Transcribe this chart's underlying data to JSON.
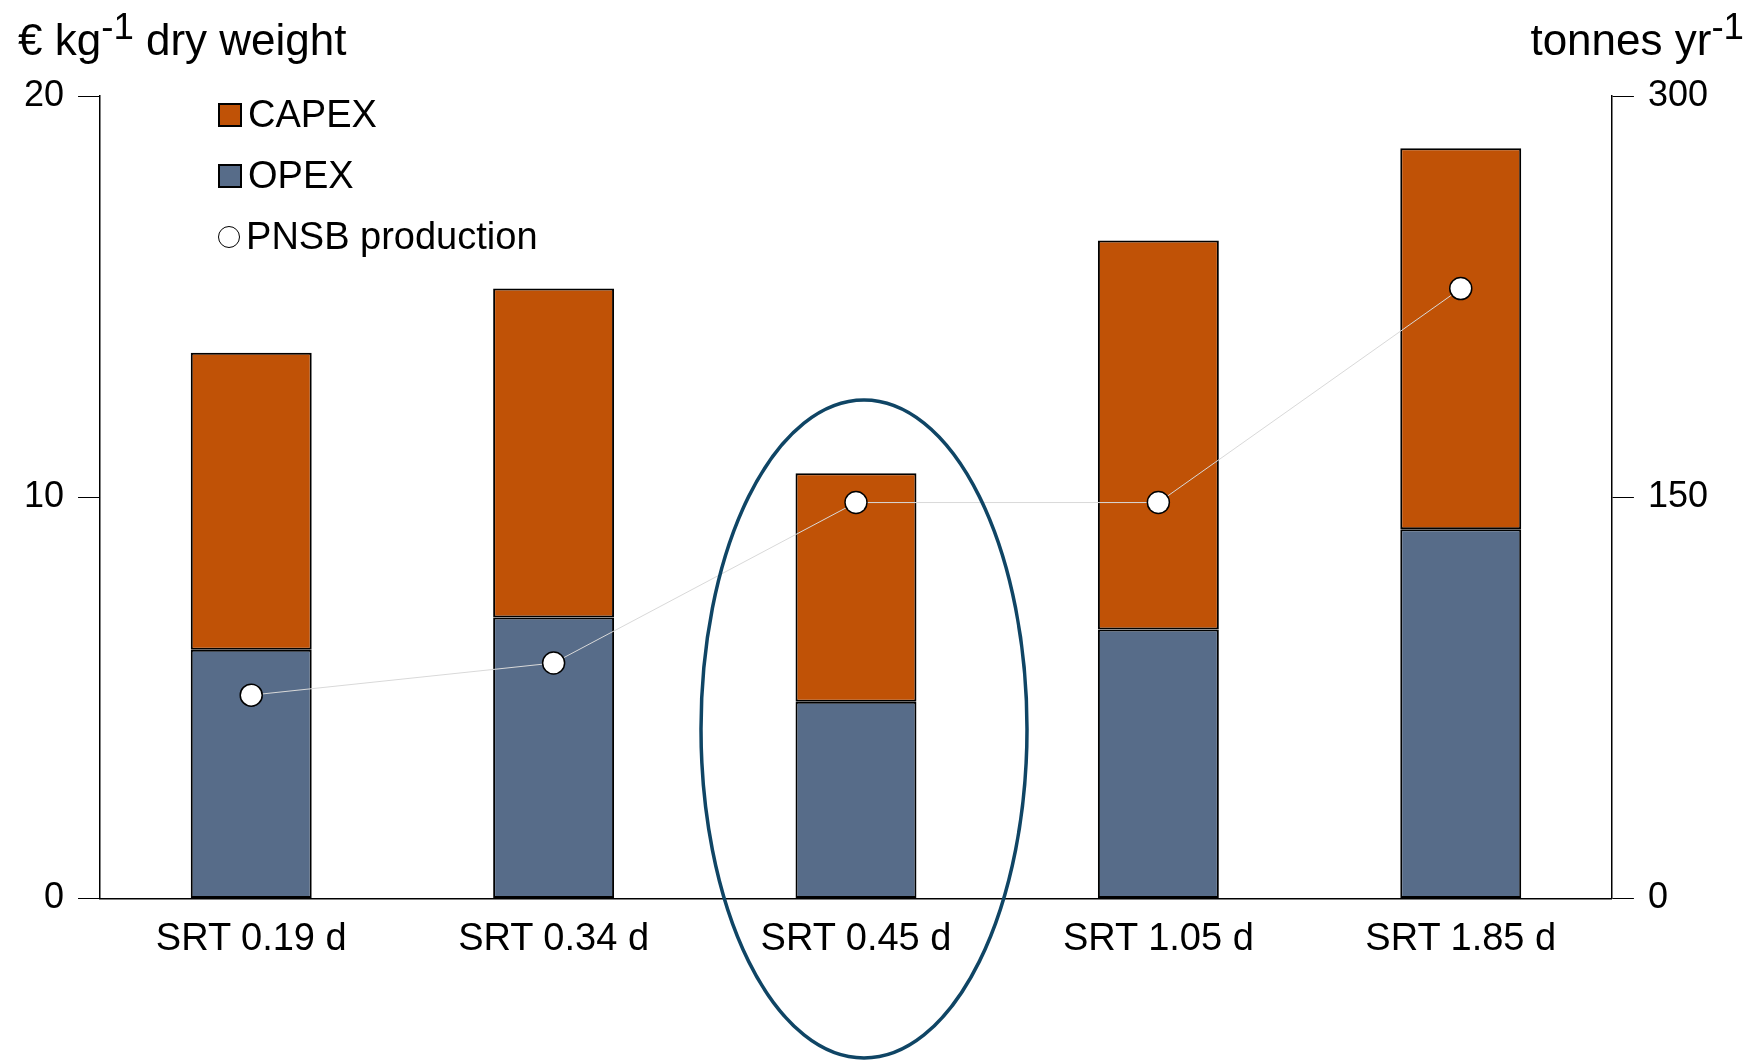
{
  "chart_data": {
    "type": "bar",
    "stacked": true,
    "ylabel": "€ kg$^{-1}$ dry weight",
    "y2label": "tonnes yr$^{-1}$",
    "categories": [
      "SRT 0.19 d",
      "SRT 0.34 d",
      "SRT 0.45 d",
      "SRT 1.05 d",
      "SRT 1.85 d"
    ],
    "series": [
      {
        "name": "OPEX",
        "color": "#576c89",
        "values": [
          6.2,
          7.0,
          4.9,
          6.7,
          9.2
        ]
      },
      {
        "name": "CAPEX",
        "color": "#c05206",
        "values": [
          7.4,
          8.2,
          5.7,
          9.7,
          9.5
        ]
      },
      {
        "name": "PNSB production",
        "type": "line",
        "axis": "y2",
        "color": "#ffffff",
        "marker": "circle",
        "values": [
          76,
          88,
          148,
          148,
          228
        ]
      }
    ],
    "ylim": [
      0,
      20
    ],
    "yticks": [
      0,
      10,
      20
    ],
    "y2lim": [
      0,
      300
    ],
    "y2ticks": [
      0,
      150,
      300
    ],
    "grid": false,
    "legend": "top left"
  }
}
